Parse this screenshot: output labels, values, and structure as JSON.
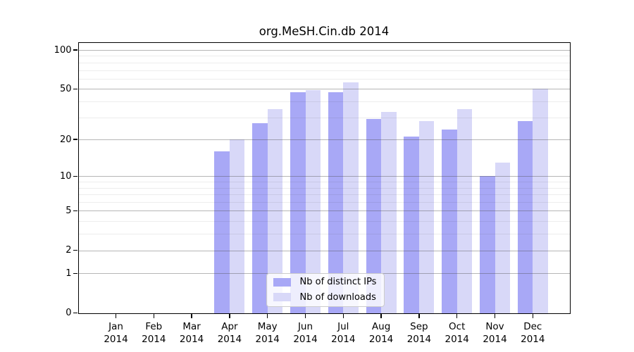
{
  "title": "org.MeSH.Cin.db 2014",
  "colors": {
    "distinct_ips_bar": "#a8a8f6",
    "downloads_bar": "#d8d8f8",
    "major_gridline": "#b3b3b3",
    "minor_gridline": "#ececec",
    "axis_frame": "#000000"
  },
  "chart_data": {
    "type": "bar",
    "title": "org.MeSH.Cin.db 2014",
    "categories": [
      "Jan 2014",
      "Feb 2014",
      "Mar 2014",
      "Apr 2014",
      "May 2014",
      "Jun 2014",
      "Jul 2014",
      "Aug 2014",
      "Sep 2014",
      "Oct 2014",
      "Nov 2014",
      "Dec 2014"
    ],
    "month_labels": [
      "Jan",
      "Feb",
      "Mar",
      "Apr",
      "May",
      "Jun",
      "Jul",
      "Aug",
      "Sep",
      "Oct",
      "Nov",
      "Dec"
    ],
    "year_label": "2014",
    "series": [
      {
        "name": "Nb of distinct IPs",
        "color": "#a8a8f6",
        "values": [
          0,
          0,
          0,
          16,
          27,
          47,
          47,
          29,
          21,
          24,
          10,
          28
        ]
      },
      {
        "name": "Nb of downloads",
        "color": "#d8d8f8",
        "values": [
          0,
          0,
          0,
          20,
          35,
          49,
          56,
          33,
          28,
          35,
          13,
          50
        ]
      }
    ],
    "xlabel": "",
    "ylabel": "",
    "y_scale": "log1p",
    "y_ticks": [
      0,
      1,
      2,
      5,
      10,
      20,
      50,
      100
    ],
    "y_tick_labels": [
      "0",
      "1",
      "2",
      "5",
      "10",
      "20",
      "50",
      "100"
    ],
    "y_minor_gridlines": [
      3,
      4,
      6,
      7,
      8,
      9,
      30,
      40,
      60,
      70,
      80,
      90
    ],
    "ylim": [
      0,
      114
    ],
    "grid": true,
    "legend_position": "lower center inside plot"
  }
}
